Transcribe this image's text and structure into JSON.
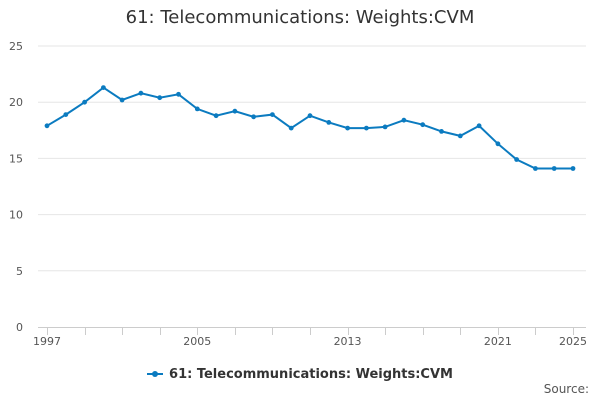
{
  "chart_data": {
    "type": "line",
    "title": "61: Telecommunications: Weights:CVM",
    "xlabel": "",
    "ylabel": "",
    "x": [
      1997,
      1998,
      1999,
      2000,
      2001,
      2002,
      2003,
      2004,
      2005,
      2006,
      2007,
      2008,
      2009,
      2010,
      2011,
      2012,
      2013,
      2014,
      2015,
      2016,
      2017,
      2018,
      2019,
      2020,
      2021,
      2022,
      2023,
      2024,
      2025
    ],
    "x_tick_labels": [
      "1997",
      "2005",
      "2013",
      "2021",
      "2025"
    ],
    "x_tick_values": [
      1997,
      2005,
      2013,
      2021,
      2025
    ],
    "y_tick_labels": [
      "0",
      "5",
      "10",
      "15",
      "20",
      "25"
    ],
    "ylim": [
      0,
      25
    ],
    "grid": true,
    "legend_position": "bottom",
    "series": [
      {
        "name": "61: Telecommunications: Weights:CVM",
        "color": "#0b7bc0",
        "values": [
          17.9,
          18.9,
          20.0,
          21.3,
          20.2,
          20.8,
          20.4,
          20.7,
          19.4,
          18.8,
          19.2,
          18.7,
          18.9,
          17.7,
          18.8,
          18.2,
          17.7,
          17.7,
          17.8,
          18.4,
          18.0,
          17.4,
          17.0,
          17.9,
          16.3,
          14.9,
          14.1,
          14.1,
          14.1
        ]
      }
    ]
  },
  "source_label": "Source:"
}
